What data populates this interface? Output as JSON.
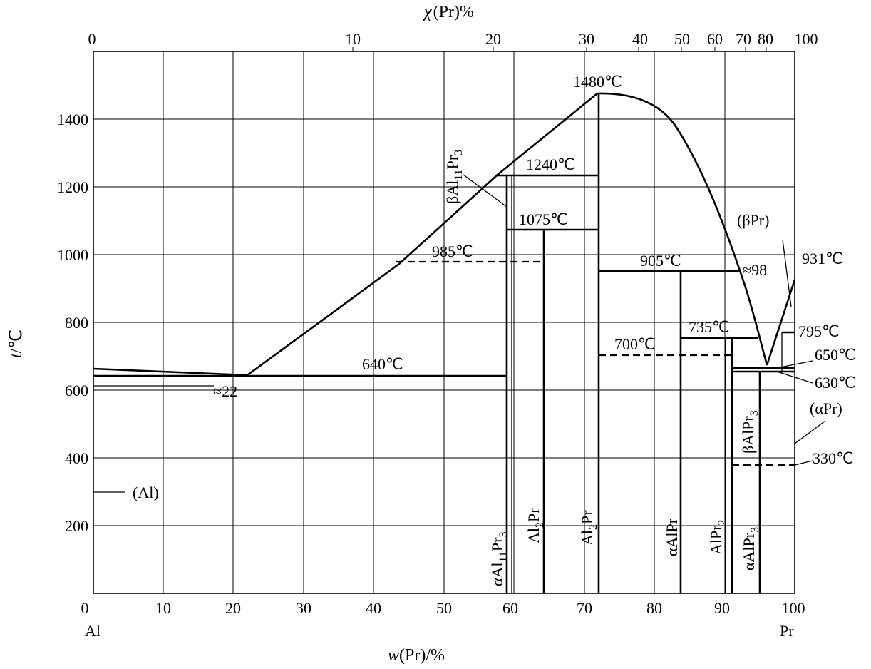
{
  "figure": {
    "top_axis_title_symbol": "χ",
    "top_axis_title_rest": "(Pr)%",
    "left_axis_title_t": "t",
    "left_axis_title_unit": "/℃",
    "bottom_axis_title_w": "w",
    "bottom_axis_title_rest": "(Pr)/%",
    "left_element": "Al",
    "right_element": "Pr"
  },
  "axes": {
    "bottom_ticks": [
      "0",
      "10",
      "20",
      "30",
      "40",
      "50",
      "60",
      "70",
      "80",
      "90",
      "100"
    ],
    "left_ticks": [
      "200",
      "400",
      "600",
      "800",
      "1000",
      "1200",
      "1400"
    ],
    "top_ticks": [
      "0",
      "10",
      "20",
      "30",
      "40",
      "50",
      "60",
      "70",
      "80",
      "100"
    ]
  },
  "labels": {
    "t1480": "1480℃",
    "t1240": "1240℃",
    "t1075": "1075℃",
    "t985": "985℃",
    "t905": "905℃",
    "t931": "931℃",
    "tapprox98": "≈98",
    "t795": "795℃",
    "t735": "735℃",
    "t700": "700℃",
    "t650": "650℃",
    "t640": "640℃",
    "t630": "630℃",
    "t330": "330℃",
    "approx22": "≈22",
    "beta_pr": "(βPr)",
    "alpha_pr": "(αPr)",
    "al_phase": "(Al)"
  },
  "compounds": {
    "beta_al11pr3": {
      "main": "βAl",
      "sub1": "11",
      "mid": "Pr",
      "sub2": "3"
    },
    "alpha_al11pr3": {
      "main": "αAl",
      "sub1": "11",
      "mid": "Pr",
      "sub2": "3"
    },
    "al2pr_a": {
      "main": "Al",
      "sub1": "2",
      "mid": "Pr"
    },
    "al2pr_b": {
      "main": "Al",
      "sub1": "2",
      "mid": "Pr"
    },
    "alpha_alpr": {
      "main": "αAlPr"
    },
    "alpr2": {
      "main": "AlPr",
      "sub1": "2"
    },
    "alpha_alpr3": {
      "main": "αAlPr",
      "sub1": "3"
    },
    "beta_alpr3": {
      "main": "βAlPr",
      "sub1": "3"
    }
  }
}
